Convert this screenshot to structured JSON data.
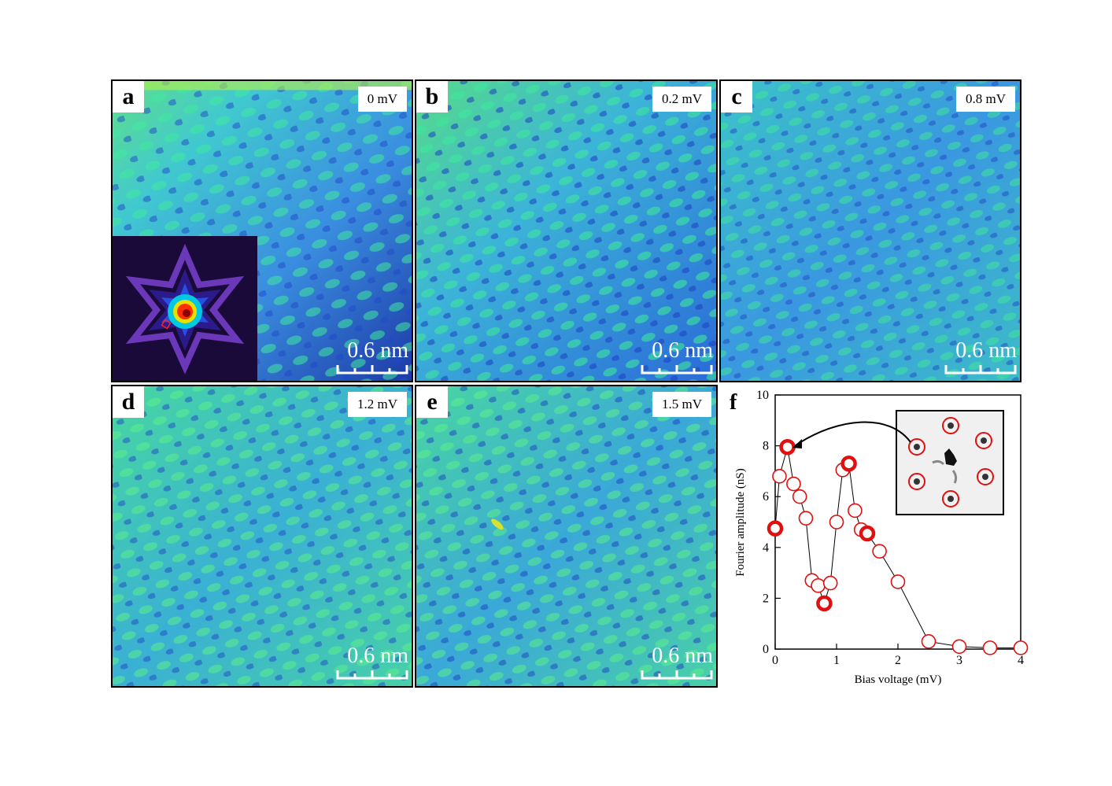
{
  "panels": [
    {
      "letter": "a",
      "voltage": "0 mV",
      "scale": "0.6 nm"
    },
    {
      "letter": "b",
      "voltage": "0.2 mV",
      "scale": "0.6 nm"
    },
    {
      "letter": "c",
      "voltage": "0.8 mV",
      "scale": "0.6 nm"
    },
    {
      "letter": "d",
      "voltage": "1.2 mV",
      "scale": "0.6 nm"
    },
    {
      "letter": "e",
      "voltage": "1.5 mV",
      "scale": "0.6 nm"
    }
  ],
  "colors": {
    "map_dark": "#1f3fb8",
    "map_mid": "#3fa6e6",
    "map_light": "#33e6a3",
    "map_high": "#66f05a",
    "marker": "#e01010"
  },
  "chart_data": {
    "type": "scatter",
    "panel_letter": "f",
    "xlabel": "Bias voltage (mV)",
    "ylabel": "Fourier amplitude (nS)",
    "xlim": [
      0,
      4
    ],
    "ylim": [
      0,
      10
    ],
    "xticks": [
      0,
      1,
      2,
      3,
      4
    ],
    "yticks": [
      0,
      2,
      4,
      6,
      8,
      10
    ],
    "connected": true,
    "points": [
      {
        "x": 0.0,
        "y": 4.75,
        "bold": true
      },
      {
        "x": 0.07,
        "y": 6.8,
        "bold": false
      },
      {
        "x": 0.2,
        "y": 7.95,
        "bold": true
      },
      {
        "x": 0.3,
        "y": 6.5,
        "bold": false
      },
      {
        "x": 0.4,
        "y": 6.0,
        "bold": false
      },
      {
        "x": 0.5,
        "y": 5.15,
        "bold": false
      },
      {
        "x": 0.6,
        "y": 2.7,
        "bold": false
      },
      {
        "x": 0.7,
        "y": 2.5,
        "bold": false
      },
      {
        "x": 0.8,
        "y": 1.8,
        "bold": true
      },
      {
        "x": 0.9,
        "y": 2.6,
        "bold": false
      },
      {
        "x": 1.0,
        "y": 5.0,
        "bold": false
      },
      {
        "x": 1.1,
        "y": 7.05,
        "bold": false
      },
      {
        "x": 1.2,
        "y": 7.3,
        "bold": true
      },
      {
        "x": 1.3,
        "y": 5.45,
        "bold": false
      },
      {
        "x": 1.4,
        "y": 4.7,
        "bold": false
      },
      {
        "x": 1.5,
        "y": 4.55,
        "bold": true
      },
      {
        "x": 1.7,
        "y": 3.85,
        "bold": false
      },
      {
        "x": 2.0,
        "y": 2.65,
        "bold": false
      },
      {
        "x": 2.5,
        "y": 0.3,
        "bold": false
      },
      {
        "x": 3.0,
        "y": 0.1,
        "bold": false
      },
      {
        "x": 3.5,
        "y": 0.05,
        "bold": false
      },
      {
        "x": 4.0,
        "y": 0.05,
        "bold": false
      }
    ],
    "annotation": "arrow from inset FFT image to point at 0.2 mV",
    "marker_color": "#e01010"
  }
}
